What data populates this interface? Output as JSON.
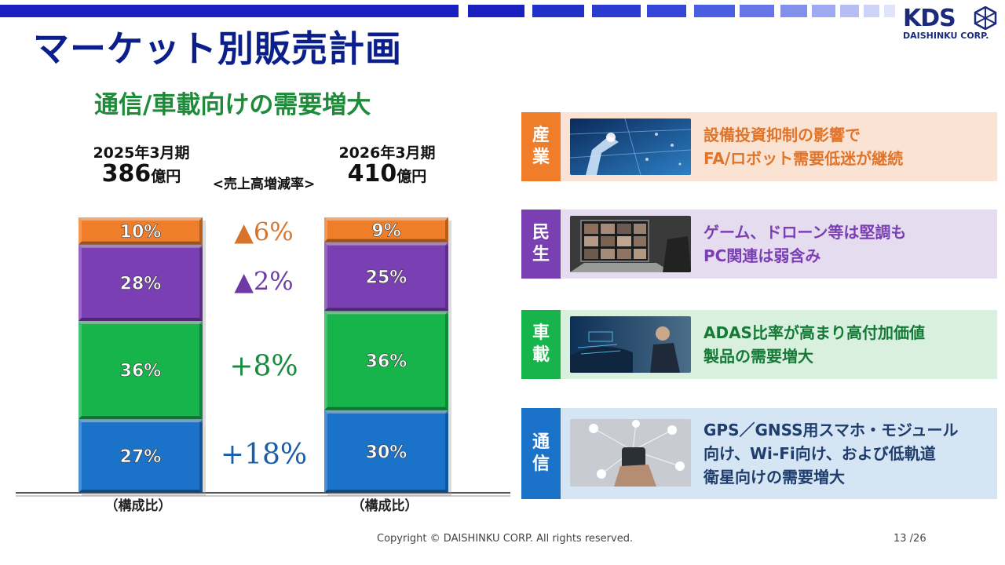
{
  "header": {
    "title": "マーケット別販売計画",
    "logo_text": "KDS",
    "logo_sub": "DAISHINKU CORP."
  },
  "subtitle": "通信/車載向けの需要増大",
  "periods": {
    "left": {
      "label": "2025年3月期",
      "value": "386",
      "unit": "億円"
    },
    "right": {
      "label": "2026年3月期",
      "value": "410",
      "unit": "億円"
    }
  },
  "growth_header": "<売上高増減率>",
  "ratio_label": "（構成比）",
  "chart_data": {
    "type": "bar",
    "stacked": true,
    "normalized": true,
    "categories": [
      "2025年3月期",
      "2026年3月期"
    ],
    "totals": [
      386,
      410
    ],
    "unit": "億円",
    "series": [
      {
        "name": "通信",
        "values": [
          27,
          30
        ],
        "labels": [
          "27%",
          "30%"
        ],
        "color": "#1a72c9",
        "growth": "+18%",
        "growth_color": "#1a5ea8"
      },
      {
        "name": "車載",
        "values": [
          36,
          36
        ],
        "labels": [
          "36%",
          "36%"
        ],
        "color": "#17b34b",
        "growth": "+8%",
        "growth_color": "#178a3e"
      },
      {
        "name": "民生",
        "values": [
          28,
          25
        ],
        "labels": [
          "28%",
          "25%"
        ],
        "color": "#7a3fb3",
        "growth": "▲2%",
        "growth_color": "#6f3aa6"
      },
      {
        "name": "産業",
        "values": [
          10,
          9
        ],
        "labels": [
          "10%",
          "9%"
        ],
        "color": "#ef7d2a",
        "growth": "▲6%",
        "growth_color": "#d8742a"
      }
    ]
  },
  "segments": [
    {
      "tab": [
        "産",
        "業"
      ],
      "lines": [
        "設備投資抑制の影響で",
        "FA/ロボット需要低迷が継続"
      ],
      "tab_color": "#ef7d2a",
      "bg_color": "#fbe3d3",
      "text_color": "#e0742a",
      "thumb_icon": "robot-arm-photo"
    },
    {
      "tab": [
        "民",
        "生"
      ],
      "lines": [
        "ゲーム、ドローン等は堅調も",
        "PC関連は弱含み"
      ],
      "tab_color": "#7a3fb3",
      "bg_color": "#e6dcef",
      "text_color": "#7a3fb3",
      "thumb_icon": "laptop-video-call-photo"
    },
    {
      "tab": [
        "車",
        "載"
      ],
      "lines": [
        "ADAS比率が高まり高付加価値",
        "製品の需要増大"
      ],
      "tab_color": "#17b34b",
      "bg_color": "#d9f0df",
      "text_color": "#167a37",
      "thumb_icon": "autonomous-car-photo"
    },
    {
      "tab": [
        "通",
        "信"
      ],
      "lines": [
        "GPS／GNSS用スマホ・モジュール",
        "向け、Wi-Fi向け、および低軌道",
        "衛星向けの需要増大"
      ],
      "tab_color": "#1a72c9",
      "bg_color": "#d5e5f4",
      "text_color": "#1f3e6e",
      "thumb_icon": "smartphone-network-photo"
    }
  ],
  "footer": {
    "copyright": "Copyright © DAISHINKU CORP. All rights reserved.",
    "page": "13 /26"
  }
}
